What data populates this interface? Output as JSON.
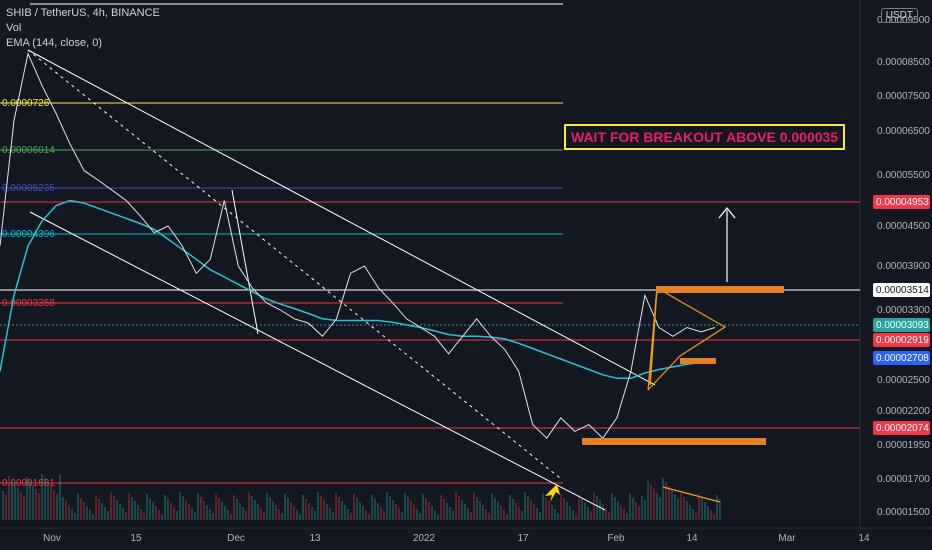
{
  "legend": {
    "symbol_line": "SHIB / TetherUS, 4h, BINANCE",
    "vol_label": "Vol",
    "ema_label": "EMA (144, close, 0)"
  },
  "currency_badge": "USDT",
  "annotation": {
    "text": "WAIT FOR BREAKOUT ABOVE 0.000035",
    "text_color": "#e91e63",
    "border_color": "#ffeb3b"
  },
  "chart_data": {
    "type": "line",
    "title": "SHIB / TetherUS, 4h, BINANCE",
    "xlabel": "",
    "ylabel": "",
    "x_ticks": [
      "Nov",
      "15",
      "Dec",
      "13",
      "2022",
      "17",
      "Feb",
      "14",
      "Mar",
      "14"
    ],
    "y_ticks": [
      "0.00009500",
      "0.00008500",
      "0.00007500",
      "0.00006500",
      "0.00005500",
      "0.00004500",
      "0.00003900",
      "0.00003300",
      "0.00002500",
      "0.00002200",
      "0.00001950",
      "0.00001700",
      "0.00001500"
    ],
    "price_tags": [
      {
        "value": "0.00004953",
        "bg": "#f23645",
        "fg": "#ffffff"
      },
      {
        "value": "0.00003514",
        "bg": "#ffffff",
        "fg": "#131722"
      },
      {
        "value": "0.00003093",
        "bg": "#26a69a",
        "fg": "#ffffff"
      },
      {
        "value": "0.00002919",
        "bg": "#f23645",
        "fg": "#ffffff"
      },
      {
        "value": "0.00002708",
        "bg": "#2962ff",
        "fg": "#ffffff"
      },
      {
        "value": "0.00002074",
        "bg": "#f23645",
        "fg": "#ffffff"
      }
    ],
    "fib_levels": [
      {
        "label": "0.0000726",
        "value": 7.26e-05,
        "color": "#ffeb3b"
      },
      {
        "label": "0.00006014",
        "value": 6.014e-05,
        "color": "#4caf50"
      },
      {
        "label": "0.00005235",
        "value": 5.235e-05,
        "color": "#3f51b5"
      },
      {
        "label": "0.00004396",
        "value": 4.396e-05,
        "color": "#00bcd4"
      },
      {
        "label": "0.00003358",
        "value": 3.358e-05,
        "color": "#f23645"
      },
      {
        "label": "0.00001681",
        "value": 1.681e-05,
        "color": "#f23645"
      }
    ],
    "series": [
      {
        "name": "close",
        "values": [
          4.2e-05,
          6.8e-05,
          8.7e-05,
          7.8e-05,
          7e-05,
          6.2e-05,
          5.6e-05,
          5.4e-05,
          5.2e-05,
          5e-05,
          4.7e-05,
          4.4e-05,
          4.5e-05,
          4.2e-05,
          3.8e-05,
          4e-05,
          5e-05,
          3.9e-05,
          3.6e-05,
          3.4e-05,
          3.3e-05,
          3.2e-05,
          3.15e-05,
          3e-05,
          3.2e-05,
          3.8e-05,
          3.9e-05,
          3.6e-05,
          3.4e-05,
          3.2e-05,
          3.1e-05,
          3e-05,
          2.8e-05,
          3e-05,
          3.2e-05,
          3e-05,
          2.85e-05,
          2.6e-05,
          2.1e-05,
          2e-05,
          2.15e-05,
          2.05e-05,
          2.1e-05,
          2e-05,
          2.15e-05,
          2.6e-05,
          3.5e-05,
          3.1e-05,
          3e-05,
          3.1e-05,
          3.05e-05,
          3.1e-05
        ]
      },
      {
        "name": "EMA (144, close, 0)",
        "values": [
          2.6e-05,
          3.5e-05,
          4.2e-05,
          4.6e-05,
          4.9e-05,
          5e-05,
          4.95e-05,
          4.85e-05,
          4.75e-05,
          4.65e-05,
          4.55e-05,
          4.45e-05,
          4.3e-05,
          4.15e-05,
          4e-05,
          3.85e-05,
          3.75e-05,
          3.65e-05,
          3.55e-05,
          3.45e-05,
          3.38e-05,
          3.32e-05,
          3.26e-05,
          3.2e-05,
          3.18e-05,
          3.18e-05,
          3.18e-05,
          3.18e-05,
          3.16e-05,
          3.13e-05,
          3.1e-05,
          3.06e-05,
          3.02e-05,
          3e-05,
          3e-05,
          2.99e-05,
          2.97e-05,
          2.92e-05,
          2.86e-05,
          2.8e-05,
          2.74e-05,
          2.68e-05,
          2.62e-05,
          2.56e-05,
          2.52e-05,
          2.52e-05,
          2.58e-05,
          2.62e-05,
          2.65e-05,
          2.68e-05,
          2.7e-05,
          2.71e-05
        ]
      }
    ],
    "colors": {
      "background": "#131722",
      "price": "#e0e3eb",
      "ema": "#26c6da",
      "trendline": "#ffffff",
      "resistance": "#f23645",
      "box": "#e67e22",
      "wedge": "#f39c12"
    }
  }
}
